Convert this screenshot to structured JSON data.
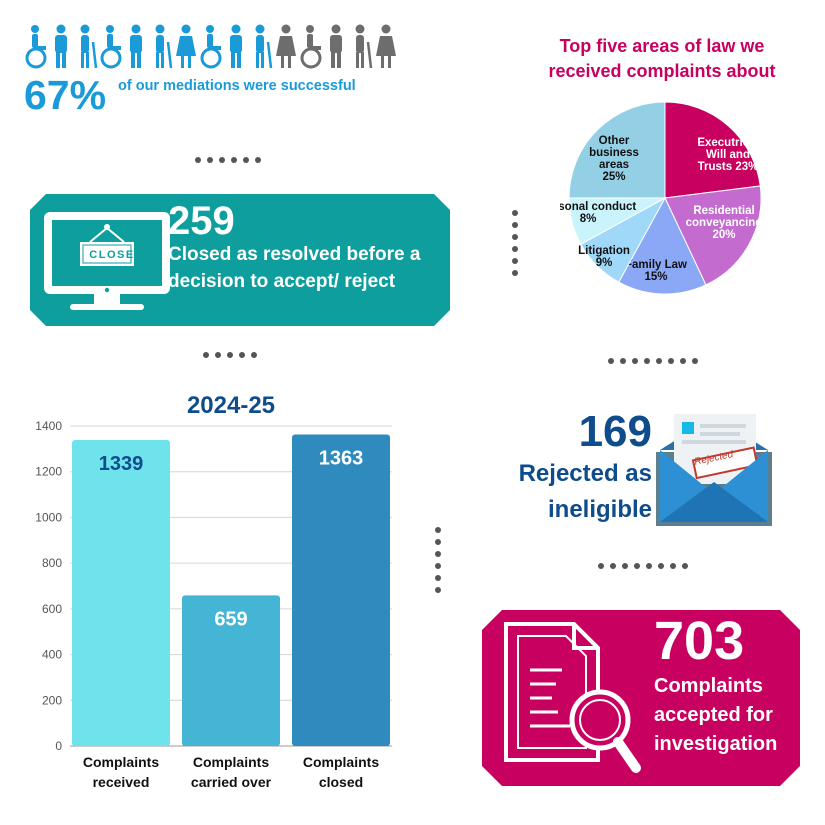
{
  "colors": {
    "blue": "#1a9bd7",
    "navy": "#0f4c8c",
    "teal": "#0f9e9e",
    "magenta": "#c8005f",
    "grey": "#555555"
  },
  "people": {
    "icons": [
      "wheelchair-user-icon",
      "person-icon",
      "elderly-person-icon",
      "wheelchair-user-icon",
      "person-icon",
      "elderly-person-icon",
      "woman-icon",
      "wheelchair-user-icon",
      "person-icon",
      "elderly-person-icon",
      "woman-icon",
      "wheelchair-user-icon",
      "person-icon",
      "elderly-person-icon",
      "woman-icon"
    ],
    "success_fraction": 0.67
  },
  "mediations": {
    "percent": "67%",
    "text": "of our mediations were successful"
  },
  "closed": {
    "number": "259",
    "line1": "Closed as resolved before a",
    "line2": "decision to accept/ reject",
    "sign": "CLOSE"
  },
  "rejected": {
    "number": "169",
    "line1": "Rejected as",
    "line2": "ineligible",
    "stamp": "Rejected"
  },
  "accepted": {
    "number": "703",
    "line1": "Complaints",
    "line2": "accepted for",
    "line3": "investigation"
  },
  "chart_data": [
    {
      "type": "pie",
      "title": "Top five areas of law we received complaints about",
      "title_lines": [
        "Top five areas of law we",
        "received complaints about"
      ],
      "slices": [
        {
          "label_lines": [
            "Executries,",
            "Will and",
            "Trusts 23%"
          ],
          "value": 23,
          "color": "#c8005f",
          "text_color": "#ffffff"
        },
        {
          "label_lines": [
            "Residential",
            "conveyancing",
            "20%"
          ],
          "value": 20,
          "color": "#c46bcf",
          "text_color": "#ffffff"
        },
        {
          "label_lines": [
            "Family Law",
            "15%"
          ],
          "value": 15,
          "color": "#8aa8f5",
          "text_color": "#111111"
        },
        {
          "label_lines": [
            "Litigation",
            "9%"
          ],
          "value": 9,
          "color": "#9fd8f8",
          "text_color": "#111111"
        },
        {
          "label_lines": [
            "Personal conduct",
            "8%"
          ],
          "value": 8,
          "color": "#c9f4fb",
          "text_color": "#111111"
        },
        {
          "label_lines": [
            "Other",
            "business",
            "areas",
            "25%"
          ],
          "value": 25,
          "color": "#93d0e6",
          "text_color": "#111111"
        }
      ]
    },
    {
      "type": "bar",
      "title": "2024-25",
      "categories": [
        [
          "Complaints",
          "received"
        ],
        [
          "Complaints",
          "carried over"
        ],
        [
          "Complaints",
          "closed"
        ]
      ],
      "values": [
        1339,
        659,
        1363
      ],
      "value_labels": [
        "1339",
        "659",
        "1363"
      ],
      "bar_colors": [
        "#6ee3eb",
        "#45b5d6",
        "#2f8bbd"
      ],
      "label_colors": [
        "#0f4c8c",
        "#ffffff",
        "#ffffff"
      ],
      "yticks": [
        0,
        200,
        400,
        600,
        800,
        1000,
        1200,
        1400
      ],
      "ylim": [
        0,
        1400
      ],
      "grid": true
    }
  ]
}
